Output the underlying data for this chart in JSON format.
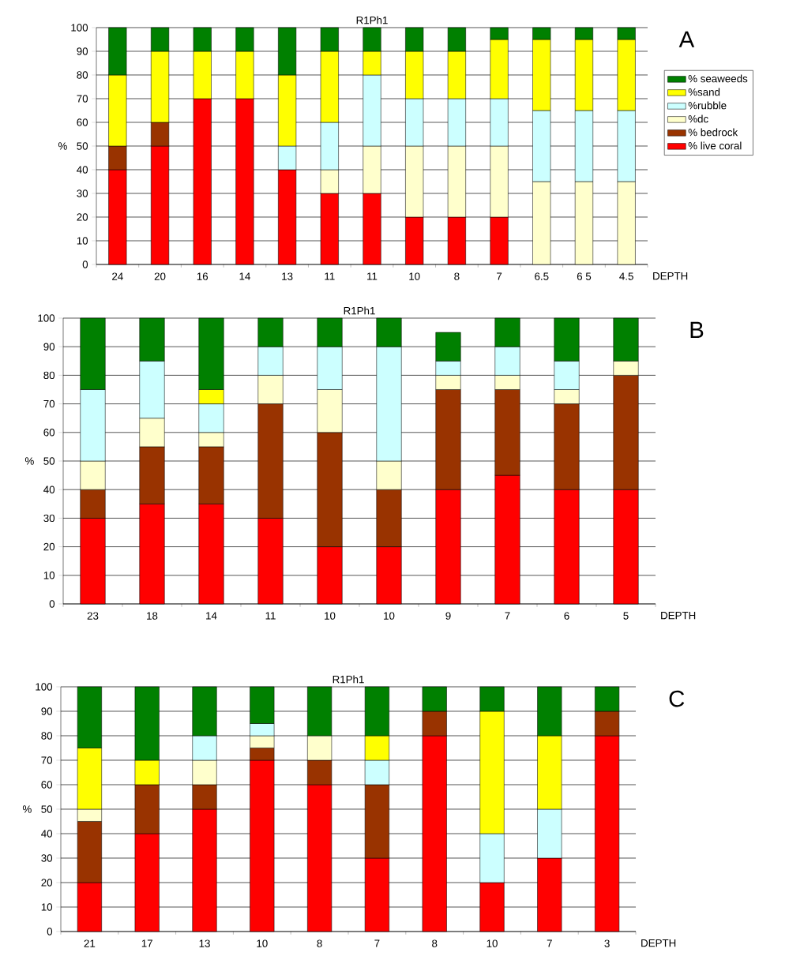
{
  "chart_data": [
    {
      "type": "bar",
      "title": "R1Ph1",
      "xlabel": "DEPTH",
      "ylabel": "%",
      "stacked": true,
      "grid": "y",
      "legend": "right",
      "annotations": [
        "A"
      ],
      "categories": [
        "24",
        "20",
        "16",
        "14",
        "13",
        "11",
        "11",
        "10",
        "8",
        "7",
        "6.5",
        "6 5",
        "4.5"
      ],
      "ylim": [
        0,
        100
      ],
      "yticks": [
        0,
        10,
        20,
        30,
        40,
        50,
        60,
        70,
        80,
        90,
        100
      ],
      "series": [
        {
          "name": "% live coral",
          "color": "#ff0000",
          "values": [
            40,
            50,
            70,
            70,
            40,
            30,
            30,
            20,
            20,
            20,
            0,
            0,
            0
          ]
        },
        {
          "name": "% bedrock",
          "color": "#993300",
          "values": [
            10,
            10,
            0,
            0,
            0,
            0,
            0,
            0,
            0,
            0,
            0,
            0,
            0
          ]
        },
        {
          "name": "%dc",
          "color": "#ffffcc",
          "values": [
            0,
            0,
            0,
            0,
            0,
            10,
            20,
            30,
            30,
            30,
            35,
            35,
            35
          ]
        },
        {
          "name": "%rubble",
          "color": "#ccffff",
          "values": [
            0,
            0,
            0,
            0,
            10,
            20,
            30,
            20,
            20,
            20,
            30,
            30,
            30
          ]
        },
        {
          "name": "%sand",
          "color": "#ffff00",
          "values": [
            30,
            30,
            20,
            20,
            30,
            30,
            10,
            20,
            20,
            25,
            30,
            30,
            30
          ]
        },
        {
          "name": "% seaweeds",
          "color": "#008000",
          "values": [
            20,
            10,
            10,
            10,
            20,
            10,
            10,
            10,
            10,
            5,
            5,
            5,
            5
          ]
        }
      ]
    },
    {
      "type": "bar",
      "title": "R1Ph1",
      "xlabel": "DEPTH",
      "ylabel": "%",
      "stacked": true,
      "grid": "y",
      "annotations": [
        "B"
      ],
      "categories": [
        "23",
        "18",
        "14",
        "11",
        "10",
        "10",
        "9",
        "7",
        "6",
        "5"
      ],
      "ylim": [
        0,
        100
      ],
      "yticks": [
        0,
        10,
        20,
        30,
        40,
        50,
        60,
        70,
        80,
        90,
        100
      ],
      "series": [
        {
          "color": "#ff0000",
          "values": [
            30,
            35,
            35,
            30,
            20,
            20,
            40,
            45,
            40,
            40
          ]
        },
        {
          "color": "#993300",
          "values": [
            10,
            20,
            20,
            40,
            40,
            20,
            35,
            30,
            30,
            40
          ]
        },
        {
          "color": "#ffffcc",
          "values": [
            10,
            10,
            5,
            10,
            15,
            10,
            5,
            5,
            5,
            5
          ]
        },
        {
          "color": "#ccffff",
          "values": [
            25,
            20,
            10,
            10,
            15,
            40,
            5,
            10,
            10,
            0
          ]
        },
        {
          "color": "#ffff00",
          "values": [
            0,
            0,
            5,
            0,
            0,
            0,
            0,
            0,
            0,
            0
          ]
        },
        {
          "color": "#008000",
          "values": [
            25,
            15,
            25,
            10,
            10,
            10,
            10,
            10,
            15,
            15
          ]
        }
      ]
    },
    {
      "type": "bar",
      "title": "R1Ph1",
      "xlabel": "DEPTH",
      "ylabel": "%",
      "stacked": true,
      "grid": "y",
      "annotations": [
        "C"
      ],
      "categories": [
        "21",
        "17",
        "13",
        "10",
        "8",
        "7",
        "8",
        "10",
        "7",
        "3"
      ],
      "ylim": [
        0,
        100
      ],
      "yticks": [
        0,
        10,
        20,
        30,
        40,
        50,
        60,
        70,
        80,
        90,
        100
      ],
      "series": [
        {
          "color": "#ff0000",
          "values": [
            20,
            40,
            50,
            70,
            60,
            30,
            80,
            20,
            30,
            80
          ]
        },
        {
          "color": "#993300",
          "values": [
            25,
            20,
            10,
            5,
            10,
            30,
            10,
            0,
            0,
            10
          ]
        },
        {
          "color": "#ffffcc",
          "values": [
            5,
            0,
            10,
            5,
            10,
            0,
            0,
            0,
            0,
            0
          ]
        },
        {
          "color": "#ccffff",
          "values": [
            0,
            0,
            10,
            5,
            0,
            10,
            0,
            20,
            20,
            0
          ]
        },
        {
          "color": "#ffff00",
          "values": [
            25,
            10,
            0,
            0,
            0,
            10,
            0,
            50,
            30,
            0
          ]
        },
        {
          "color": "#008000",
          "values": [
            25,
            30,
            20,
            15,
            20,
            20,
            10,
            10,
            20,
            10
          ]
        }
      ]
    }
  ]
}
